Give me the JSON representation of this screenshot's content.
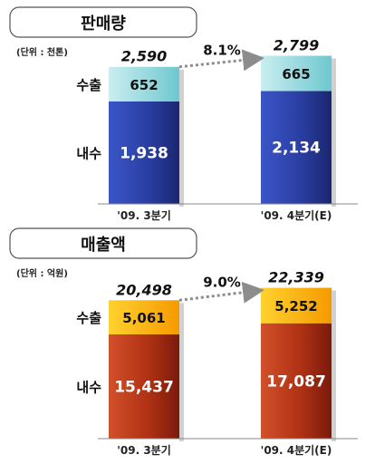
{
  "chart_data": [
    {
      "type": "bar",
      "title": "판매량",
      "unit_note": "(단위 : 천톤)",
      "categories": [
        "'09. 3분기",
        "'09. 4분기(E)"
      ],
      "series": [
        {
          "name": "내수",
          "values": [
            1938,
            2134
          ]
        },
        {
          "name": "수출",
          "values": [
            652,
            665
          ]
        }
      ],
      "totals": [
        "2,590",
        "2,799"
      ],
      "value_labels": [
        [
          "1,938",
          "2,134"
        ],
        [
          "652",
          "665"
        ]
      ],
      "growth_label": "8.1%"
    },
    {
      "type": "bar",
      "title": "매출액",
      "unit_note": "(단위 : 억원)",
      "categories": [
        "'09. 3분기",
        "'09. 4분기(E)"
      ],
      "series": [
        {
          "name": "내수",
          "values": [
            15437,
            17087
          ]
        },
        {
          "name": "수출",
          "values": [
            5061,
            5252
          ]
        }
      ],
      "totals": [
        "20,498",
        "22,339"
      ],
      "value_labels": [
        [
          "15,437",
          "17,087"
        ],
        [
          "5,061",
          "5,252"
        ]
      ],
      "growth_label": "9.0%"
    }
  ],
  "colors": {
    "domestic_sales": "#2c42a8",
    "export_sales": "#8fdde0",
    "domestic_revenue": "#b03214",
    "export_revenue": "#ffbb00"
  }
}
